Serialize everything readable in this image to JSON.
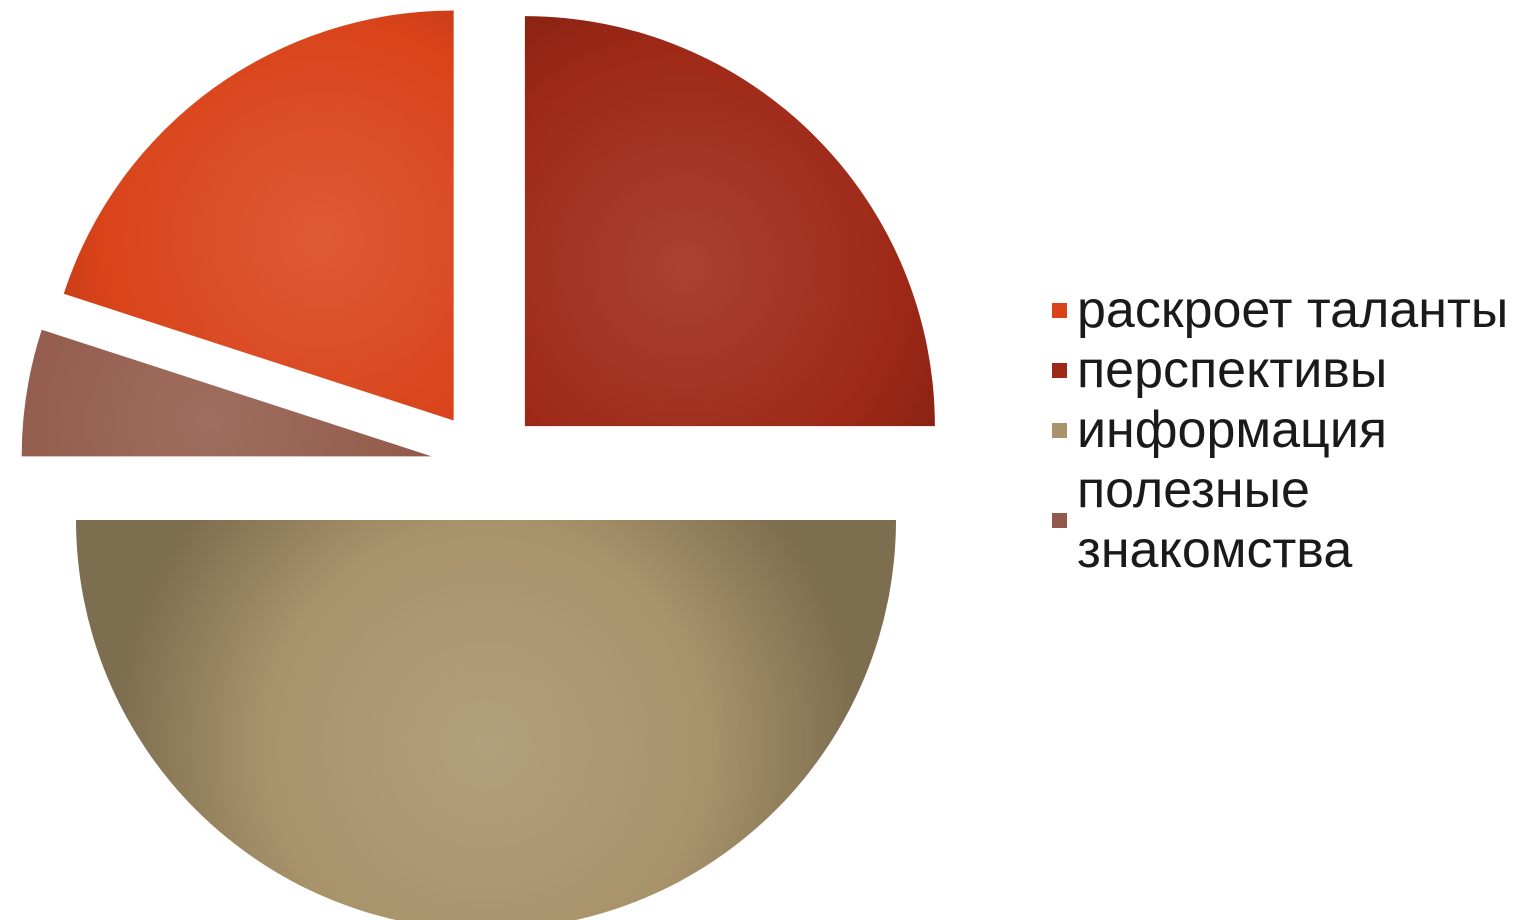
{
  "chart_data": {
    "type": "pie",
    "exploded": true,
    "slices": [
      {
        "label": "раскроет таланты",
        "value": 20,
        "color": "#D9431A"
      },
      {
        "label": "перспективы",
        "value": 25,
        "color": "#9E2816"
      },
      {
        "label": "информация",
        "value": 50,
        "color": "#A8936A"
      },
      {
        "label": "полезные знакомства",
        "value": 5,
        "color": "#925A4A"
      }
    ],
    "legend_position": "right"
  }
}
